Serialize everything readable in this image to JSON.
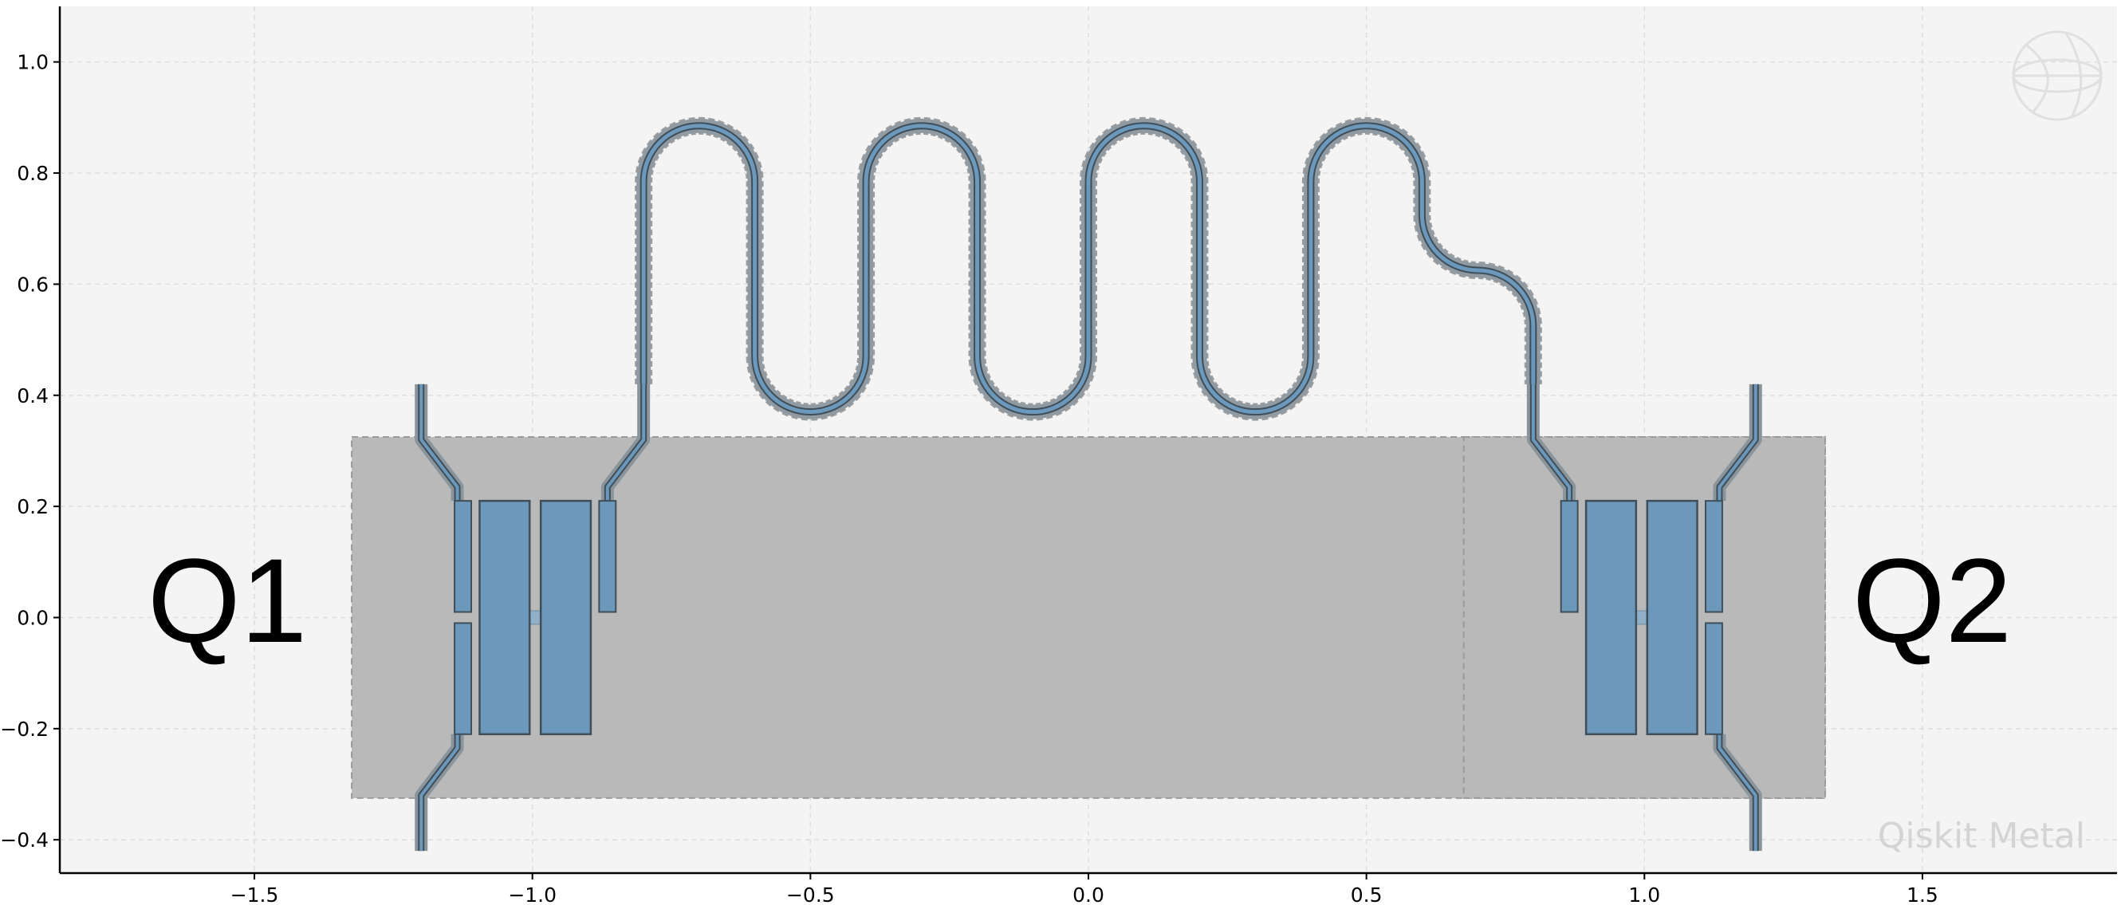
{
  "chart_data": {
    "type": "layout",
    "title": "",
    "xlabel": "",
    "ylabel": "",
    "xlim": [
      -1.85,
      1.85
    ],
    "ylim": [
      -0.46,
      1.1
    ],
    "x_ticks": [
      -1.5,
      -1.0,
      -0.5,
      0.0,
      0.5,
      1.0,
      1.5
    ],
    "y_ticks": [
      -0.4,
      -0.2,
      0.0,
      0.2,
      0.4,
      0.6,
      0.8,
      1.0
    ],
    "x_tick_labels": [
      "−1.5",
      "−1.0",
      "−0.5",
      "0.0",
      "0.5",
      "1.0",
      "1.5"
    ],
    "y_tick_labels": [
      "−0.4",
      "−0.2",
      "0.0",
      "0.2",
      "0.4",
      "0.6",
      "0.8",
      "1.0"
    ],
    "grid": true,
    "annotations": [
      "Q1",
      "Q2"
    ],
    "watermark": "Qiskit Metal",
    "colors": {
      "background": "#f4f4f4",
      "grid": "#dedede",
      "ground_cutout": "#b9b9b9",
      "metal": "#6b98bb",
      "edge": "#3f4e58",
      "gap": "#8f9aa2"
    },
    "qubits": [
      {
        "label": "Q1",
        "center": [
          -1.0,
          0.0
        ],
        "pocket": [
          -1.325,
          -0.325,
          1.325,
          0.325
        ],
        "pads": [
          [
            -1.095,
            -0.21,
            -1.005,
            0.21
          ],
          [
            -0.985,
            -0.21,
            -0.895,
            0.21
          ]
        ],
        "junction": [
          -1.005,
          -0.012,
          -0.985,
          0.012
        ],
        "side_pads": [
          [
            -1.14,
            0.01,
            -1.11,
            0.21
          ],
          [
            -1.14,
            -0.21,
            -1.11,
            -0.01
          ],
          [
            -0.88,
            0.01,
            -0.85,
            0.21
          ]
        ],
        "connector_leads": [
          [
            [
              -1.2,
              0.42
            ],
            [
              -1.2,
              0.32
            ],
            [
              -1.135,
              0.235
            ],
            [
              -1.135,
              0.21
            ]
          ],
          [
            [
              -1.2,
              -0.42
            ],
            [
              -1.2,
              -0.32
            ],
            [
              -1.135,
              -0.235
            ],
            [
              -1.135,
              -0.21
            ]
          ],
          [
            [
              -0.8,
              0.42
            ],
            [
              -0.8,
              0.32
            ],
            [
              -0.865,
              0.235
            ],
            [
              -0.865,
              0.21
            ]
          ]
        ]
      },
      {
        "label": "Q2",
        "center": [
          1.0,
          0.0
        ],
        "pocket": [
          0.675,
          -0.325,
          1.325,
          0.325
        ],
        "pads": [
          [
            0.895,
            -0.21,
            0.985,
            0.21
          ],
          [
            1.005,
            -0.21,
            1.095,
            0.21
          ]
        ],
        "junction": [
          0.985,
          -0.012,
          1.005,
          0.012
        ],
        "side_pads": [
          [
            0.85,
            0.01,
            0.88,
            0.21
          ],
          [
            1.11,
            0.01,
            1.14,
            0.21
          ],
          [
            1.11,
            -0.21,
            1.14,
            -0.01
          ]
        ],
        "connector_leads": [
          [
            [
              0.8,
              0.42
            ],
            [
              0.8,
              0.32
            ],
            [
              0.865,
              0.235
            ],
            [
              0.865,
              0.21
            ]
          ],
          [
            [
              1.2,
              0.42
            ],
            [
              1.2,
              0.32
            ],
            [
              1.135,
              0.235
            ],
            [
              1.135,
              0.21
            ]
          ],
          [
            [
              1.2,
              -0.42
            ],
            [
              1.2,
              -0.32
            ],
            [
              1.135,
              -0.235
            ],
            [
              1.135,
              -0.21
            ]
          ]
        ]
      }
    ],
    "meander": {
      "start": [
        -0.8,
        0.42
      ],
      "end": [
        0.8,
        0.42
      ],
      "top_y": 0.885,
      "bottom_y": 0.37,
      "lower_loop_y": 0.625,
      "turn_columns": [
        -0.8,
        -0.6,
        -0.4,
        -0.2,
        0.0,
        0.2,
        0.4,
        0.6,
        0.8
      ]
    }
  }
}
